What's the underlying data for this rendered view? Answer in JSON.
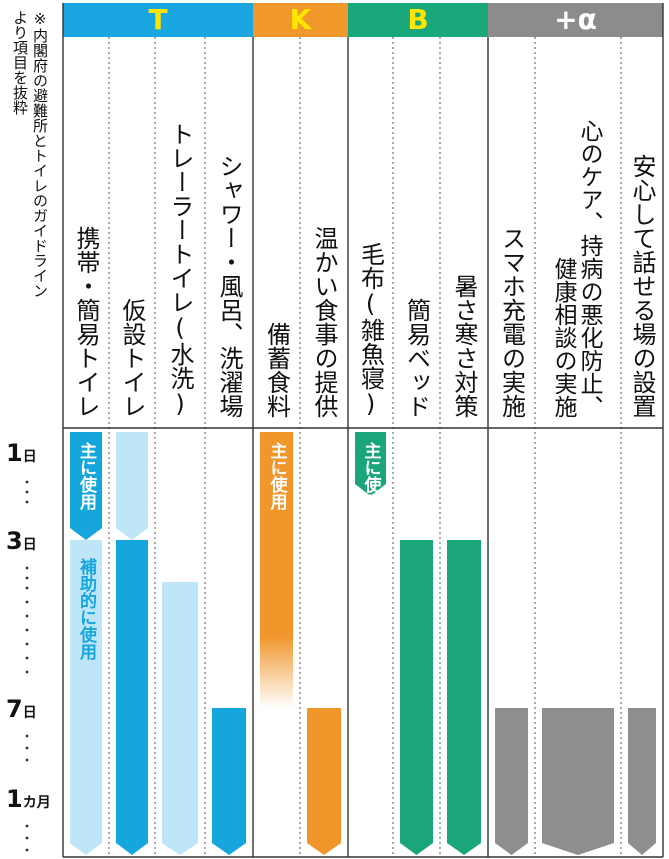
{
  "note": "※内閣府の避難所とトイレのガイドラインより項目を抜粋",
  "chart_data": {
    "type": "bar",
    "rows": [
      "1日",
      "3日",
      "7日",
      "1カ月"
    ],
    "groups": [
      {
        "label": "T",
        "color": "#1aa6e0"
      },
      {
        "label": "K",
        "color": "#f0982a"
      },
      {
        "label": "B",
        "color": "#19a67a"
      },
      {
        "label": "+α",
        "color": "#8c8c8c"
      }
    ],
    "colors": {
      "blue": "#16a6de",
      "light_blue": "#bfe6f8",
      "orange": "#f0962b",
      "green": "#1aa57b",
      "gray": "#8e8e8e"
    },
    "items": [
      {
        "label": "携帯・簡易トイレ",
        "group": "T",
        "segments": [
          {
            "from_day": 1,
            "to_day": 3,
            "kind": "main",
            "color": "blue",
            "tag": "主に使用"
          },
          {
            "from_day": 3,
            "to_day": 30,
            "kind": "aux",
            "color": "light_blue",
            "tag": "補助的に使用"
          }
        ]
      },
      {
        "label": "仮設トイレ",
        "group": "T",
        "segments": [
          {
            "from_day": 1,
            "to_day": 3,
            "kind": "aux",
            "color": "light_blue"
          },
          {
            "from_day": 3,
            "to_day": 30,
            "kind": "main",
            "color": "blue"
          }
        ]
      },
      {
        "label": "トレーラートイレ(水洗)",
        "group": "T",
        "segments": [
          {
            "from_day": 4,
            "to_day": 30,
            "kind": "aux",
            "color": "light_blue"
          }
        ]
      },
      {
        "label": "シャワー・風呂、洗濯場",
        "group": "T",
        "segments": [
          {
            "from_day": 7,
            "to_day": 30,
            "kind": "main",
            "color": "blue"
          }
        ]
      },
      {
        "label": "備蓄食料",
        "group": "K",
        "segments": [
          {
            "from_day": 1,
            "to_day": 7,
            "kind": "main",
            "color": "orange",
            "tag": "主に使用",
            "fade_out": true
          }
        ]
      },
      {
        "label": "温かい食事の提供",
        "group": "K",
        "segments": [
          {
            "from_day": 7,
            "to_day": 30,
            "kind": "main",
            "color": "orange"
          }
        ]
      },
      {
        "label": "毛布(雑魚寝)",
        "group": "B",
        "segments": [
          {
            "from_day": 1,
            "to_day": 2,
            "kind": "main",
            "color": "green",
            "tag": "主に使用"
          }
        ]
      },
      {
        "label": "簡易ベッド",
        "group": "B",
        "segments": [
          {
            "from_day": 3,
            "to_day": 30,
            "kind": "main",
            "color": "green"
          }
        ]
      },
      {
        "label": "暑さ寒さ対策",
        "group": "B",
        "segments": [
          {
            "from_day": 3,
            "to_day": 30,
            "kind": "main",
            "color": "green"
          }
        ]
      },
      {
        "label": "スマホ充電の実施",
        "group": "+α",
        "segments": [
          {
            "from_day": 7,
            "to_day": 30,
            "kind": "main",
            "color": "gray"
          }
        ]
      },
      {
        "label": "心のケア、持病の悪化防止、健康相談の実施",
        "group": "+α",
        "segments": [
          {
            "from_day": 7,
            "to_day": 30,
            "kind": "main",
            "color": "gray"
          }
        ]
      },
      {
        "label": "安心して話せる場の設置",
        "group": "+α",
        "segments": [
          {
            "from_day": 7,
            "to_day": 30,
            "kind": "main",
            "color": "gray"
          }
        ]
      }
    ]
  }
}
